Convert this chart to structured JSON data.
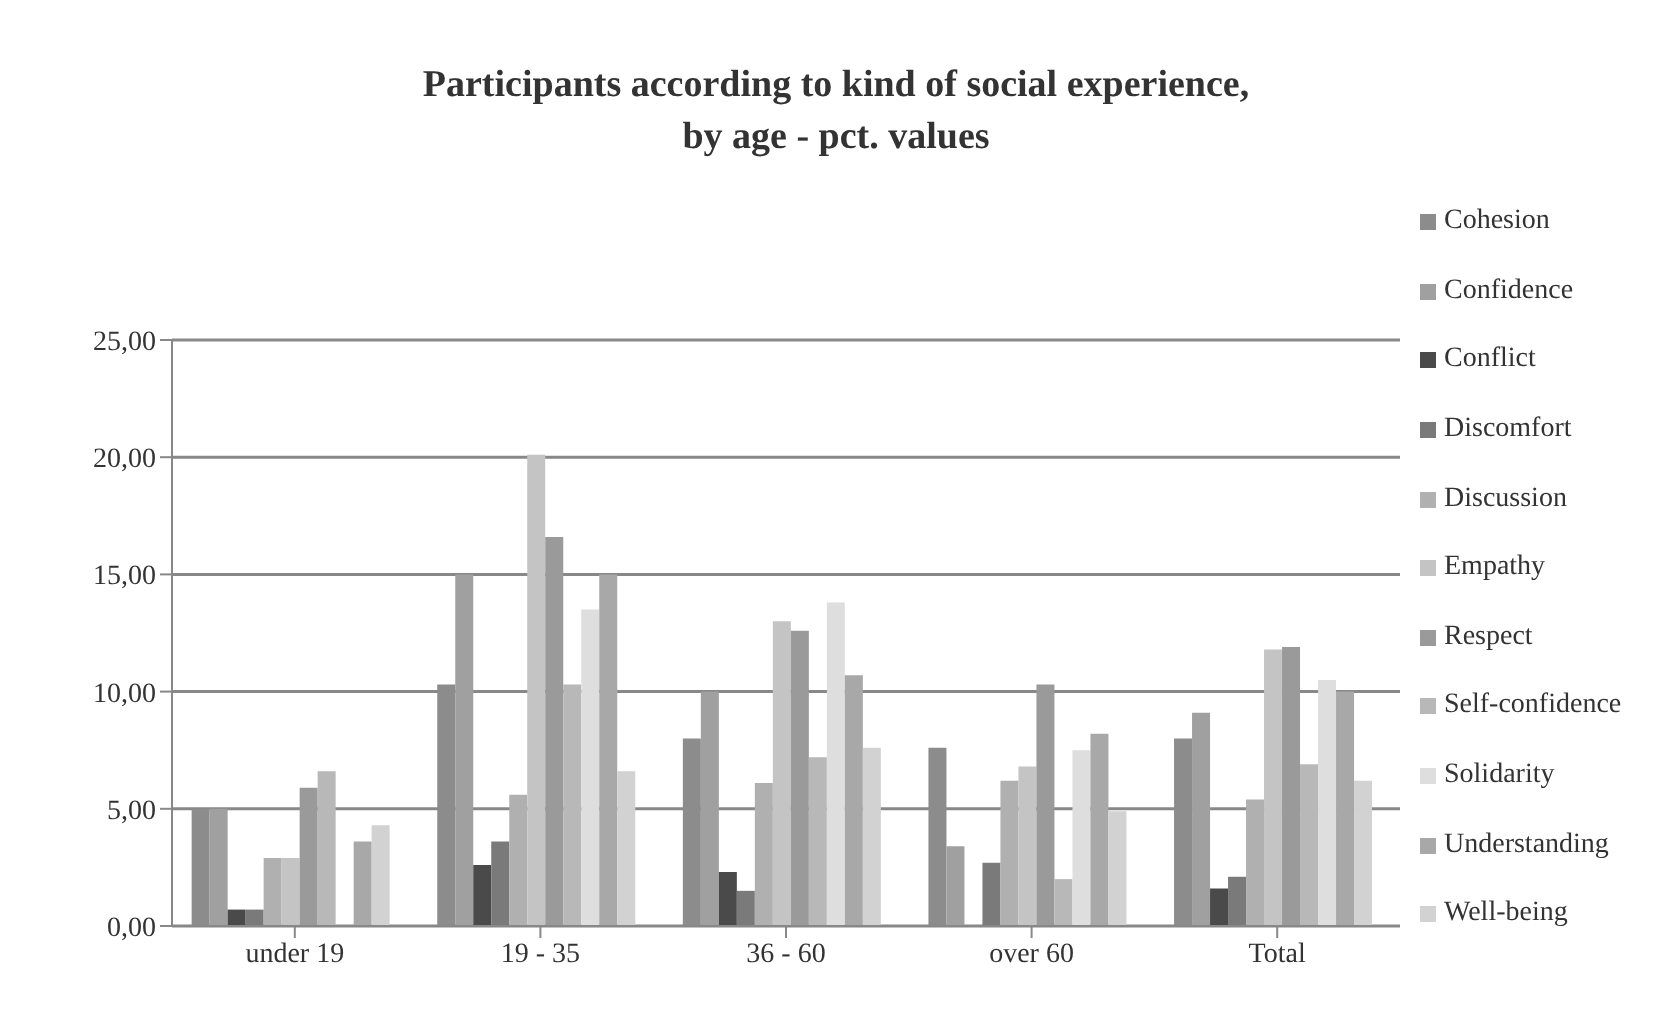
{
  "chart_data": {
    "type": "bar",
    "title": "Participants according to kind of social experience, by age - pct. values",
    "categories": [
      "under 19",
      "19 - 35",
      "36 - 60",
      "over 60",
      "Total"
    ],
    "series": [
      {
        "name": "Cohesion",
        "color": "#8c8c8c",
        "values": [
          5.0,
          10.3,
          8.0,
          7.6,
          8.0
        ]
      },
      {
        "name": "Confidence",
        "color": "#a0a0a0",
        "values": [
          5.0,
          15.0,
          10.0,
          3.4,
          9.1
        ]
      },
      {
        "name": "Conflict",
        "color": "#4a4a4a",
        "values": [
          0.7,
          2.6,
          2.3,
          0,
          1.6
        ]
      },
      {
        "name": "Discomfort",
        "color": "#7a7a7a",
        "values": [
          0.7,
          3.6,
          1.5,
          2.7,
          2.1
        ]
      },
      {
        "name": "Discussion",
        "color": "#b0b0b0",
        "values": [
          2.9,
          5.6,
          6.1,
          6.2,
          5.4
        ]
      },
      {
        "name": "Empathy",
        "color": "#c4c4c4",
        "values": [
          2.9,
          20.1,
          13.0,
          6.8,
          11.8
        ]
      },
      {
        "name": "Respect",
        "color": "#9a9a9a",
        "values": [
          5.9,
          16.6,
          12.6,
          10.3,
          11.9
        ]
      },
      {
        "name": "Self-confidence",
        "color": "#b8b8b8",
        "values": [
          6.6,
          10.3,
          7.2,
          2.0,
          6.9
        ]
      },
      {
        "name": "Solidarity",
        "color": "#dedede",
        "values": [
          0,
          13.5,
          13.8,
          7.5,
          10.5
        ]
      },
      {
        "name": "Understanding",
        "color": "#a8a8a8",
        "values": [
          3.6,
          15.0,
          10.7,
          8.2,
          10.0
        ]
      },
      {
        "name": "Well-being",
        "color": "#d2d2d2",
        "values": [
          4.3,
          6.6,
          7.6,
          4.9,
          6.2
        ]
      }
    ],
    "ylim": [
      0,
      25
    ],
    "yticks": [
      {
        "value": 0,
        "label": "0,00"
      },
      {
        "value": 5,
        "label": "5,00"
      },
      {
        "value": 10,
        "label": "10,00"
      },
      {
        "value": 15,
        "label": "15,00"
      },
      {
        "value": 20,
        "label": "20,00"
      },
      {
        "value": 25,
        "label": "25,00"
      }
    ],
    "grid": "y",
    "legend": "right"
  }
}
